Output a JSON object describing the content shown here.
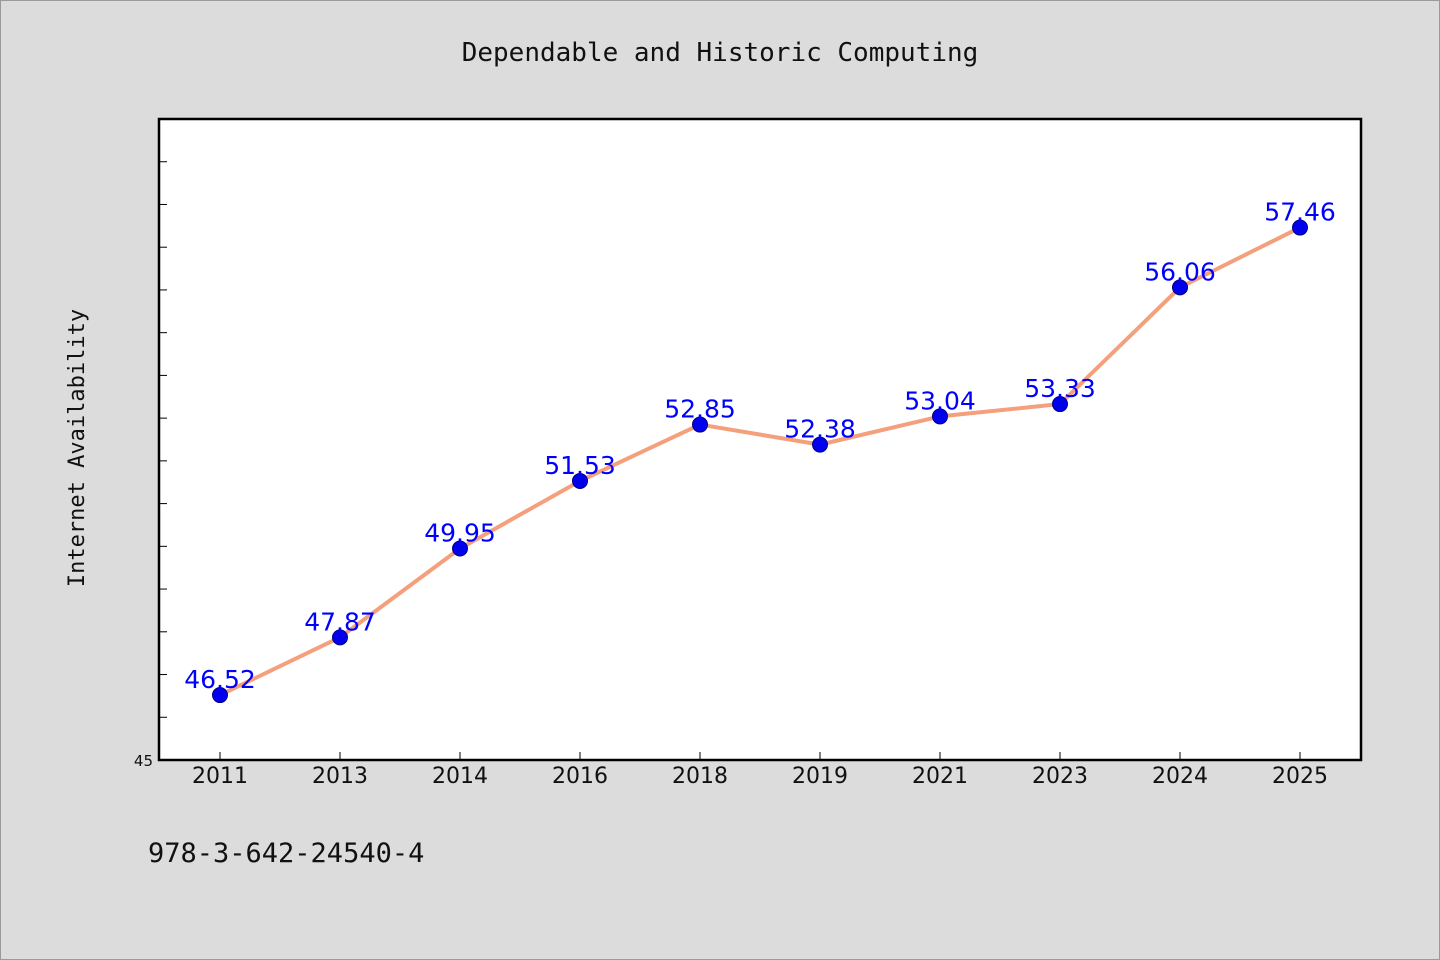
{
  "chart_data": {
    "type": "line",
    "title": "Dependable and Historic Computing",
    "ylabel": "Internet Availability",
    "xlabel": "",
    "categories": [
      "2011",
      "2013",
      "2014",
      "2016",
      "2018",
      "2019",
      "2021",
      "2023",
      "2024",
      "2025"
    ],
    "series": [
      {
        "values": [
          46.52,
          47.87,
          49.95,
          51.53,
          52.85,
          52.38,
          53.04,
          53.33,
          56.06,
          57.46
        ]
      }
    ],
    "data_labels": [
      "46.52",
      "47.87",
      "49.95",
      "51.53",
      "52.85",
      "52.38",
      "53.04",
      "53.33",
      "56.06",
      "57.46"
    ],
    "ylim": [
      45,
      60
    ],
    "y_tick_label": "45",
    "grid": false,
    "legend": "none",
    "colors": {
      "line": "#f4a07c",
      "marker": "#0000ee",
      "data_label": "#0000ff",
      "background": "#dcdcdc",
      "plot_background": "#ffffff"
    }
  },
  "footer": {
    "isbn": "978-3-642-24540-4"
  }
}
